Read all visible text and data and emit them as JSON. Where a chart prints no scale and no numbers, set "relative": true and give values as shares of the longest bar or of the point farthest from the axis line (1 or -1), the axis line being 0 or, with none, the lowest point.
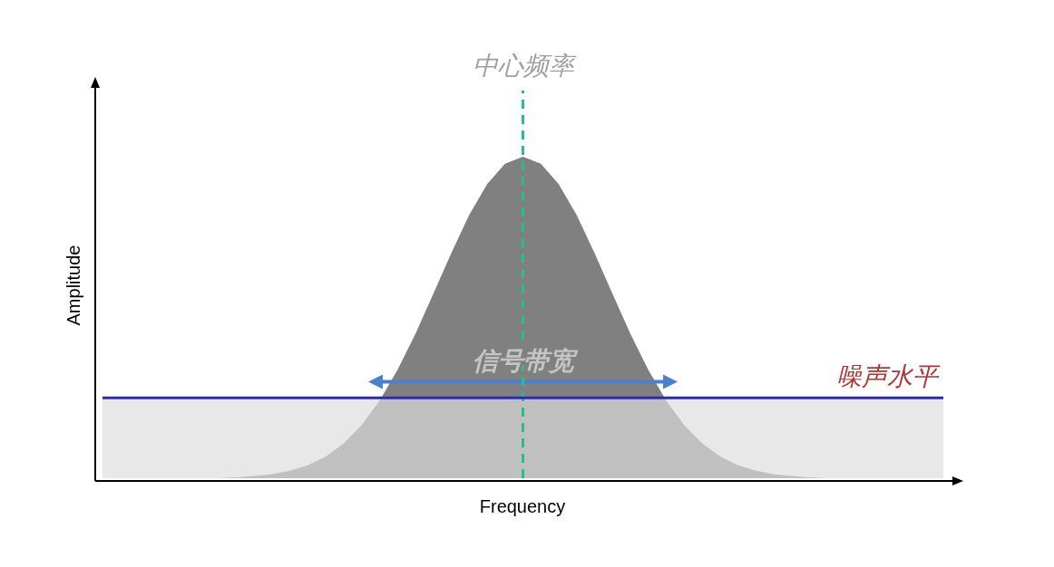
{
  "chart_data": {
    "type": "area",
    "relative": true,
    "xlabel": "Frequency",
    "ylabel": "Amplitude",
    "categories": [
      null,
      null,
      null,
      null,
      null,
      null,
      null,
      null,
      null,
      null,
      null,
      null,
      null,
      null,
      null,
      null,
      null,
      null,
      null,
      null,
      null,
      null,
      null,
      null,
      null,
      null,
      null,
      null,
      null,
      null,
      null,
      null,
      null,
      null,
      null,
      null,
      null,
      null,
      null,
      null,
      null,
      null,
      null,
      null,
      null,
      null,
      null
    ],
    "series": [
      {
        "color": "#808080",
        "values": [
          0,
          0,
          0,
          0,
          0,
          0,
          0,
          0.003,
          0.007,
          0.013,
          0.024,
          0.041,
          0.068,
          0.109,
          0.166,
          0.242,
          0.338,
          0.45,
          0.575,
          0.701,
          0.819,
          0.915,
          0.978,
          1,
          0.978,
          0.915,
          0.819,
          0.701,
          0.575,
          0.45,
          0.338,
          0.242,
          0.166,
          0.109,
          0.068,
          0.041,
          0.024,
          0.013,
          0.007,
          0.003,
          0,
          0,
          0,
          0,
          0,
          0,
          0
        ]
      },
      {
        "type": "line",
        "color": "#4a80d0",
        "values": [
          null,
          null,
          null,
          null,
          null,
          null,
          null,
          null,
          null,
          null,
          null,
          null,
          null,
          null,
          null,
          0.3,
          0.3,
          0.3,
          0.3,
          0.3,
          0.3,
          0.3,
          0.3,
          0.3,
          0.3,
          0.3,
          0.3,
          0.3,
          0.3,
          0.3,
          0.3,
          0.3,
          null,
          null,
          null,
          null,
          null,
          null,
          null,
          null,
          null,
          null,
          null,
          null,
          null,
          null,
          null
        ]
      }
    ],
    "bands": [
      {
        "axis": "y",
        "from": 0,
        "to": 0.25,
        "color": "#dddddd"
      }
    ],
    "ref_lines": [
      {
        "axis": "y",
        "value": 0.25,
        "label": "噪声水平",
        "color": "#2b2bb8",
        "line_style": "solid"
      }
    ],
    "annotations": [
      "中心频率",
      "信号带宽"
    ]
  }
}
